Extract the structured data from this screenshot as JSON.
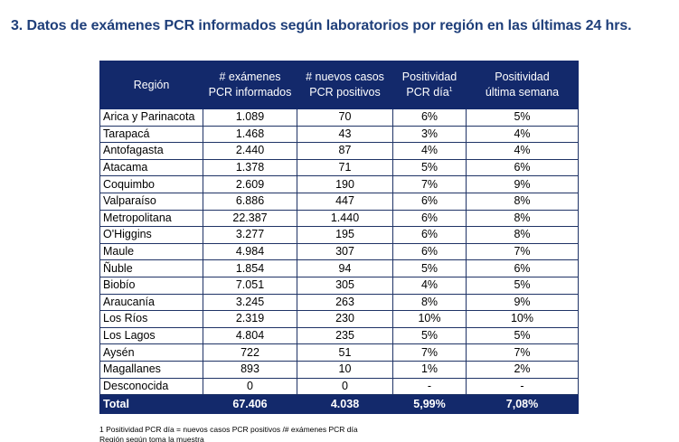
{
  "heading": "3.  Datos de exámenes PCR informados según laboratorios por región en las últimas 24 hrs.",
  "table": {
    "headers": {
      "region": "Región",
      "examenes_l1": "# exámenes",
      "examenes_l2": "PCR informados",
      "casos_l1": "# nuevos casos",
      "casos_l2": "PCR positivos",
      "pos_dia_l1": "Positividad",
      "pos_dia_l2": "PCR día",
      "pos_dia_sup": "1",
      "pos_sem_l1": "Positividad",
      "pos_sem_l2": "última semana"
    },
    "rows": [
      {
        "region": "Arica y Parinacota",
        "examenes": "1.089",
        "casos": "70",
        "pos_dia": "6%",
        "pos_sem": "5%"
      },
      {
        "region": "Tarapacá",
        "examenes": "1.468",
        "casos": "43",
        "pos_dia": "3%",
        "pos_sem": "4%"
      },
      {
        "region": "Antofagasta",
        "examenes": "2.440",
        "casos": "87",
        "pos_dia": "4%",
        "pos_sem": "4%"
      },
      {
        "region": "Atacama",
        "examenes": "1.378",
        "casos": "71",
        "pos_dia": "5%",
        "pos_sem": "6%"
      },
      {
        "region": "Coquimbo",
        "examenes": "2.609",
        "casos": "190",
        "pos_dia": "7%",
        "pos_sem": "9%"
      },
      {
        "region": "Valparaíso",
        "examenes": "6.886",
        "casos": "447",
        "pos_dia": "6%",
        "pos_sem": "8%"
      },
      {
        "region": "Metropolitana",
        "examenes": "22.387",
        "casos": "1.440",
        "pos_dia": "6%",
        "pos_sem": "8%"
      },
      {
        "region": "O'Higgins",
        "examenes": "3.277",
        "casos": "195",
        "pos_dia": "6%",
        "pos_sem": "8%"
      },
      {
        "region": "Maule",
        "examenes": "4.984",
        "casos": "307",
        "pos_dia": "6%",
        "pos_sem": "7%"
      },
      {
        "region": "Ñuble",
        "examenes": "1.854",
        "casos": "94",
        "pos_dia": "5%",
        "pos_sem": "6%"
      },
      {
        "region": "Biobío",
        "examenes": "7.051",
        "casos": "305",
        "pos_dia": "4%",
        "pos_sem": "5%"
      },
      {
        "region": "Araucanía",
        "examenes": "3.245",
        "casos": "263",
        "pos_dia": "8%",
        "pos_sem": "9%"
      },
      {
        "region": "Los Ríos",
        "examenes": "2.319",
        "casos": "230",
        "pos_dia": "10%",
        "pos_sem": "10%"
      },
      {
        "region": "Los Lagos",
        "examenes": "4.804",
        "casos": "235",
        "pos_dia": "5%",
        "pos_sem": "5%"
      },
      {
        "region": "Aysén",
        "examenes": "722",
        "casos": "51",
        "pos_dia": "7%",
        "pos_sem": "7%"
      },
      {
        "region": "Magallanes",
        "examenes": "893",
        "casos": "10",
        "pos_dia": "1%",
        "pos_sem": "2%"
      },
      {
        "region": "Desconocida",
        "examenes": "0",
        "casos": "0",
        "pos_dia": "-",
        "pos_sem": "-"
      }
    ],
    "total": {
      "region": "Total",
      "examenes": "67.406",
      "casos": "4.038",
      "pos_dia": "5,99%",
      "pos_sem": "7,08%"
    }
  },
  "footnotes": {
    "note1": "1 Positividad PCR día = nuevos casos PCR positivos /# exámenes PCR día",
    "note2": "Región según toma la muestra"
  },
  "colors": {
    "header_bg": "#13296b",
    "heading_text": "#1f3f7a"
  }
}
